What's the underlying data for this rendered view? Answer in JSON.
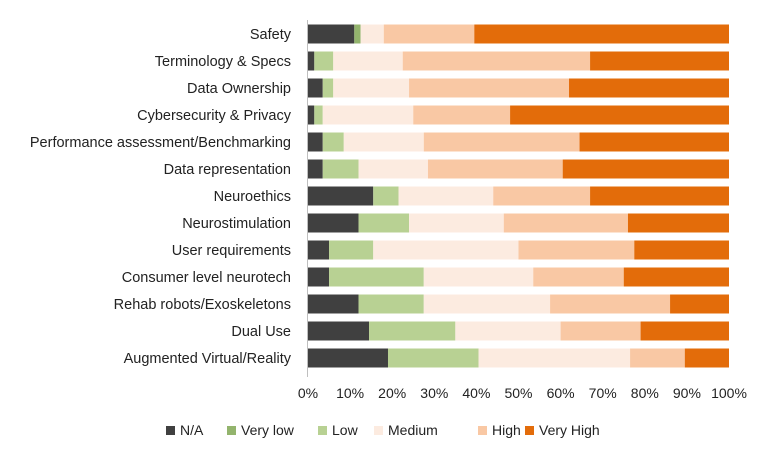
{
  "chart_data": {
    "type": "bar",
    "orientation": "horizontal",
    "stacking": "percent",
    "categories": [
      "Safety",
      "Terminology & Specs",
      "Data Ownership",
      "Cybersecurity & Privacy",
      "Performance assessment/Benchmarking",
      "Data representation",
      "Neuroethics",
      "Neurostimulation",
      "User requirements",
      "Consumer level neurotech",
      "Rehab robots/Exoskeletons",
      "Dual Use",
      "Augmented Virtual/Reality"
    ],
    "series": [
      {
        "name": "N/A",
        "color": "#404040",
        "values": [
          11,
          1.5,
          3.5,
          1.5,
          3.5,
          3.5,
          15.5,
          12,
          5,
          5,
          12,
          14.5,
          19
        ]
      },
      {
        "name": "Very low",
        "color": "#93b46d",
        "values": [
          1.5,
          0,
          0,
          0,
          0,
          0,
          0,
          0,
          0,
          0,
          0,
          0,
          0
        ]
      },
      {
        "name": "Low",
        "color": "#b8d193",
        "values": [
          0,
          4.5,
          2.5,
          2,
          5,
          8.5,
          6,
          12,
          10.5,
          22.5,
          15.5,
          20.5,
          21.5
        ]
      },
      {
        "name": "Medium",
        "color": "#fcebe0",
        "values": [
          5.5,
          16.5,
          18,
          21.5,
          19,
          16.5,
          22.5,
          22.5,
          34.5,
          26,
          30,
          25,
          36
        ]
      },
      {
        "name": "High",
        "color": "#f9c8a4",
        "values": [
          21.5,
          44.5,
          38,
          23,
          37,
          32,
          23,
          29.5,
          27.5,
          21.5,
          28.5,
          19,
          13
        ]
      },
      {
        "name": "Very High",
        "color": "#e36c0a",
        "values": [
          60.5,
          33,
          38,
          52,
          35.5,
          39.5,
          33,
          24,
          22.5,
          25,
          14,
          21,
          10.5
        ]
      }
    ],
    "xticks": [
      "0%",
      "10%",
      "20%",
      "30%",
      "40%",
      "50%",
      "60%",
      "70%",
      "80%",
      "90%",
      "100%"
    ],
    "xlim": [
      0,
      100
    ],
    "title": "",
    "xlabel": "",
    "ylabel": "",
    "grid": false,
    "legend_position": "bottom"
  }
}
